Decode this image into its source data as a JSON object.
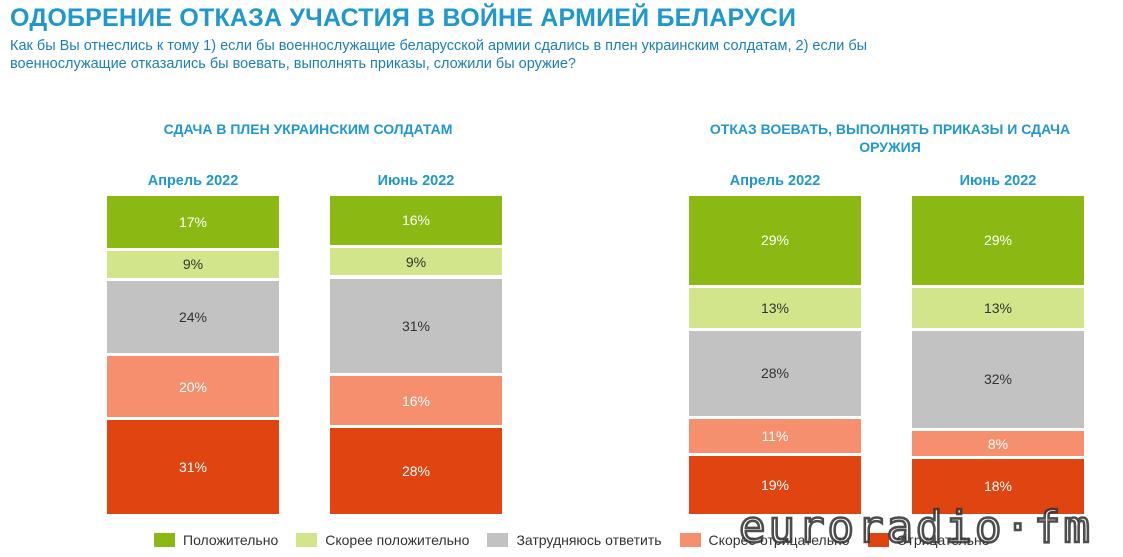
{
  "header": {
    "title": "ОДОБРЕНИЕ ОТКАЗА УЧАСТИЯ В ВОЙНЕ АРМИЕЙ БЕЛАРУСИ",
    "subtitle": "Как бы Вы отнеслись к тому 1) если бы военнослужащие беларусской армии сдались в плен украинским солдатам, 2) если бы военнослужащие отказались бы воевать, выполнять приказы, сложили бы оружие?"
  },
  "watermark": {
    "logo_text": "euroradio·fm"
  },
  "colors": {
    "positive": "#8cb813",
    "rather_positive": "#d3e58a",
    "hard_to_say": "#c2c2c2",
    "rather_negative": "#f58f6e",
    "negative": "#e04410",
    "accent": "#1f97cf"
  },
  "chart_data": [
    {
      "type": "bar",
      "stacked": true,
      "title": "СДАЧА В ПЛЕН УКРАИНСКИМ СОЛДАТАМ",
      "categories": [
        "Апрель 2022",
        "Июнь 2022"
      ],
      "series": [
        {
          "name": "Положительно",
          "values": [
            17,
            16
          ],
          "labels": [
            "17%",
            "16%"
          ]
        },
        {
          "name": "Скорее положительно",
          "values": [
            9,
            9
          ],
          "labels": [
            "9%",
            "9%"
          ]
        },
        {
          "name": "Затрудняюсь ответить",
          "values": [
            24,
            31
          ],
          "labels": [
            "24%",
            "31%"
          ]
        },
        {
          "name": "Скорее отрицательно",
          "values": [
            20,
            16
          ],
          "labels": [
            "20%",
            "16%"
          ]
        },
        {
          "name": "Отрицательно",
          "values": [
            31,
            28
          ],
          "labels": [
            "31%",
            "28%"
          ]
        }
      ]
    },
    {
      "type": "bar",
      "stacked": true,
      "title": "ОТКАЗ ВОЕВАТЬ, ВЫПОЛНЯТЬ ПРИКАЗЫ И СДАЧА ОРУЖИЯ",
      "categories": [
        "Апрель 2022",
        "Июнь 2022"
      ],
      "series": [
        {
          "name": "Положительно",
          "values": [
            29,
            29
          ],
          "labels": [
            "29%",
            "29%"
          ]
        },
        {
          "name": "Скорее положительно",
          "values": [
            13,
            13
          ],
          "labels": [
            "13%",
            "13%"
          ]
        },
        {
          "name": "Затрудняюсь ответить",
          "values": [
            28,
            32
          ],
          "labels": [
            "28%",
            "32%"
          ]
        },
        {
          "name": "Скорее отрицательно",
          "values": [
            11,
            8
          ],
          "labels": [
            "11%",
            "8%"
          ]
        },
        {
          "name": "Отрицательно",
          "values": [
            19,
            18
          ],
          "labels": [
            "19%",
            "18%"
          ]
        }
      ]
    }
  ],
  "legend": {
    "placement": "bottom",
    "items": [
      {
        "label": "Положительно",
        "color": "#8cb813"
      },
      {
        "label": "Скорее положительно",
        "color": "#d3e58a"
      },
      {
        "label": "Затрудняюсь ответить",
        "color": "#c2c2c2"
      },
      {
        "label": "Скорее отрицательно",
        "color": "#f58f6e"
      },
      {
        "label": "Отрицательно",
        "color": "#e04410"
      }
    ]
  }
}
